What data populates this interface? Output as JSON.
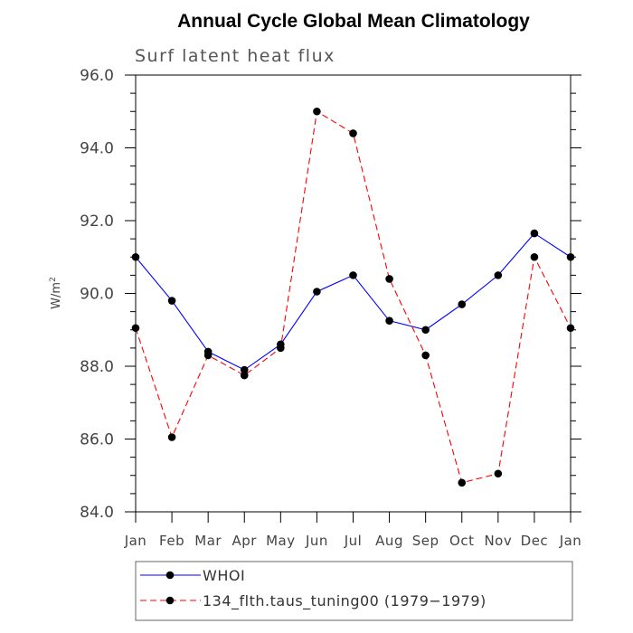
{
  "chart_data": {
    "type": "line",
    "title": "Annual Cycle Global Mean Climatology",
    "subtitle": "Surf latent heat flux",
    "ylabel": "W/m",
    "ylabel_superscript": "2",
    "categories": [
      "Jan",
      "Feb",
      "Mar",
      "Apr",
      "May",
      "Jun",
      "Jul",
      "Aug",
      "Sep",
      "Oct",
      "Nov",
      "Dec",
      "Jan"
    ],
    "ylim": [
      84.0,
      96.0
    ],
    "yticks": [
      "84.0",
      "86.0",
      "88.0",
      "90.0",
      "92.0",
      "94.0",
      "96.0"
    ],
    "grid": false,
    "legend_position": "bottom",
    "series": [
      {
        "name": "WHOI",
        "color": "#0000ff",
        "dash": "solid",
        "marker": "filled-circle",
        "values": [
          91.0,
          89.8,
          88.4,
          87.9,
          88.6,
          90.05,
          90.5,
          89.25,
          89.0,
          89.7,
          90.5,
          91.65,
          91.0
        ]
      },
      {
        "name": "134_flth.taus_tuning00 (1979−1979)",
        "color": "#ff0000",
        "dash": "dashed",
        "marker": "filled-circle",
        "values": [
          89.05,
          86.05,
          88.3,
          87.75,
          88.5,
          95.0,
          94.4,
          90.4,
          88.3,
          84.8,
          85.05,
          91.0,
          89.05
        ]
      }
    ]
  }
}
